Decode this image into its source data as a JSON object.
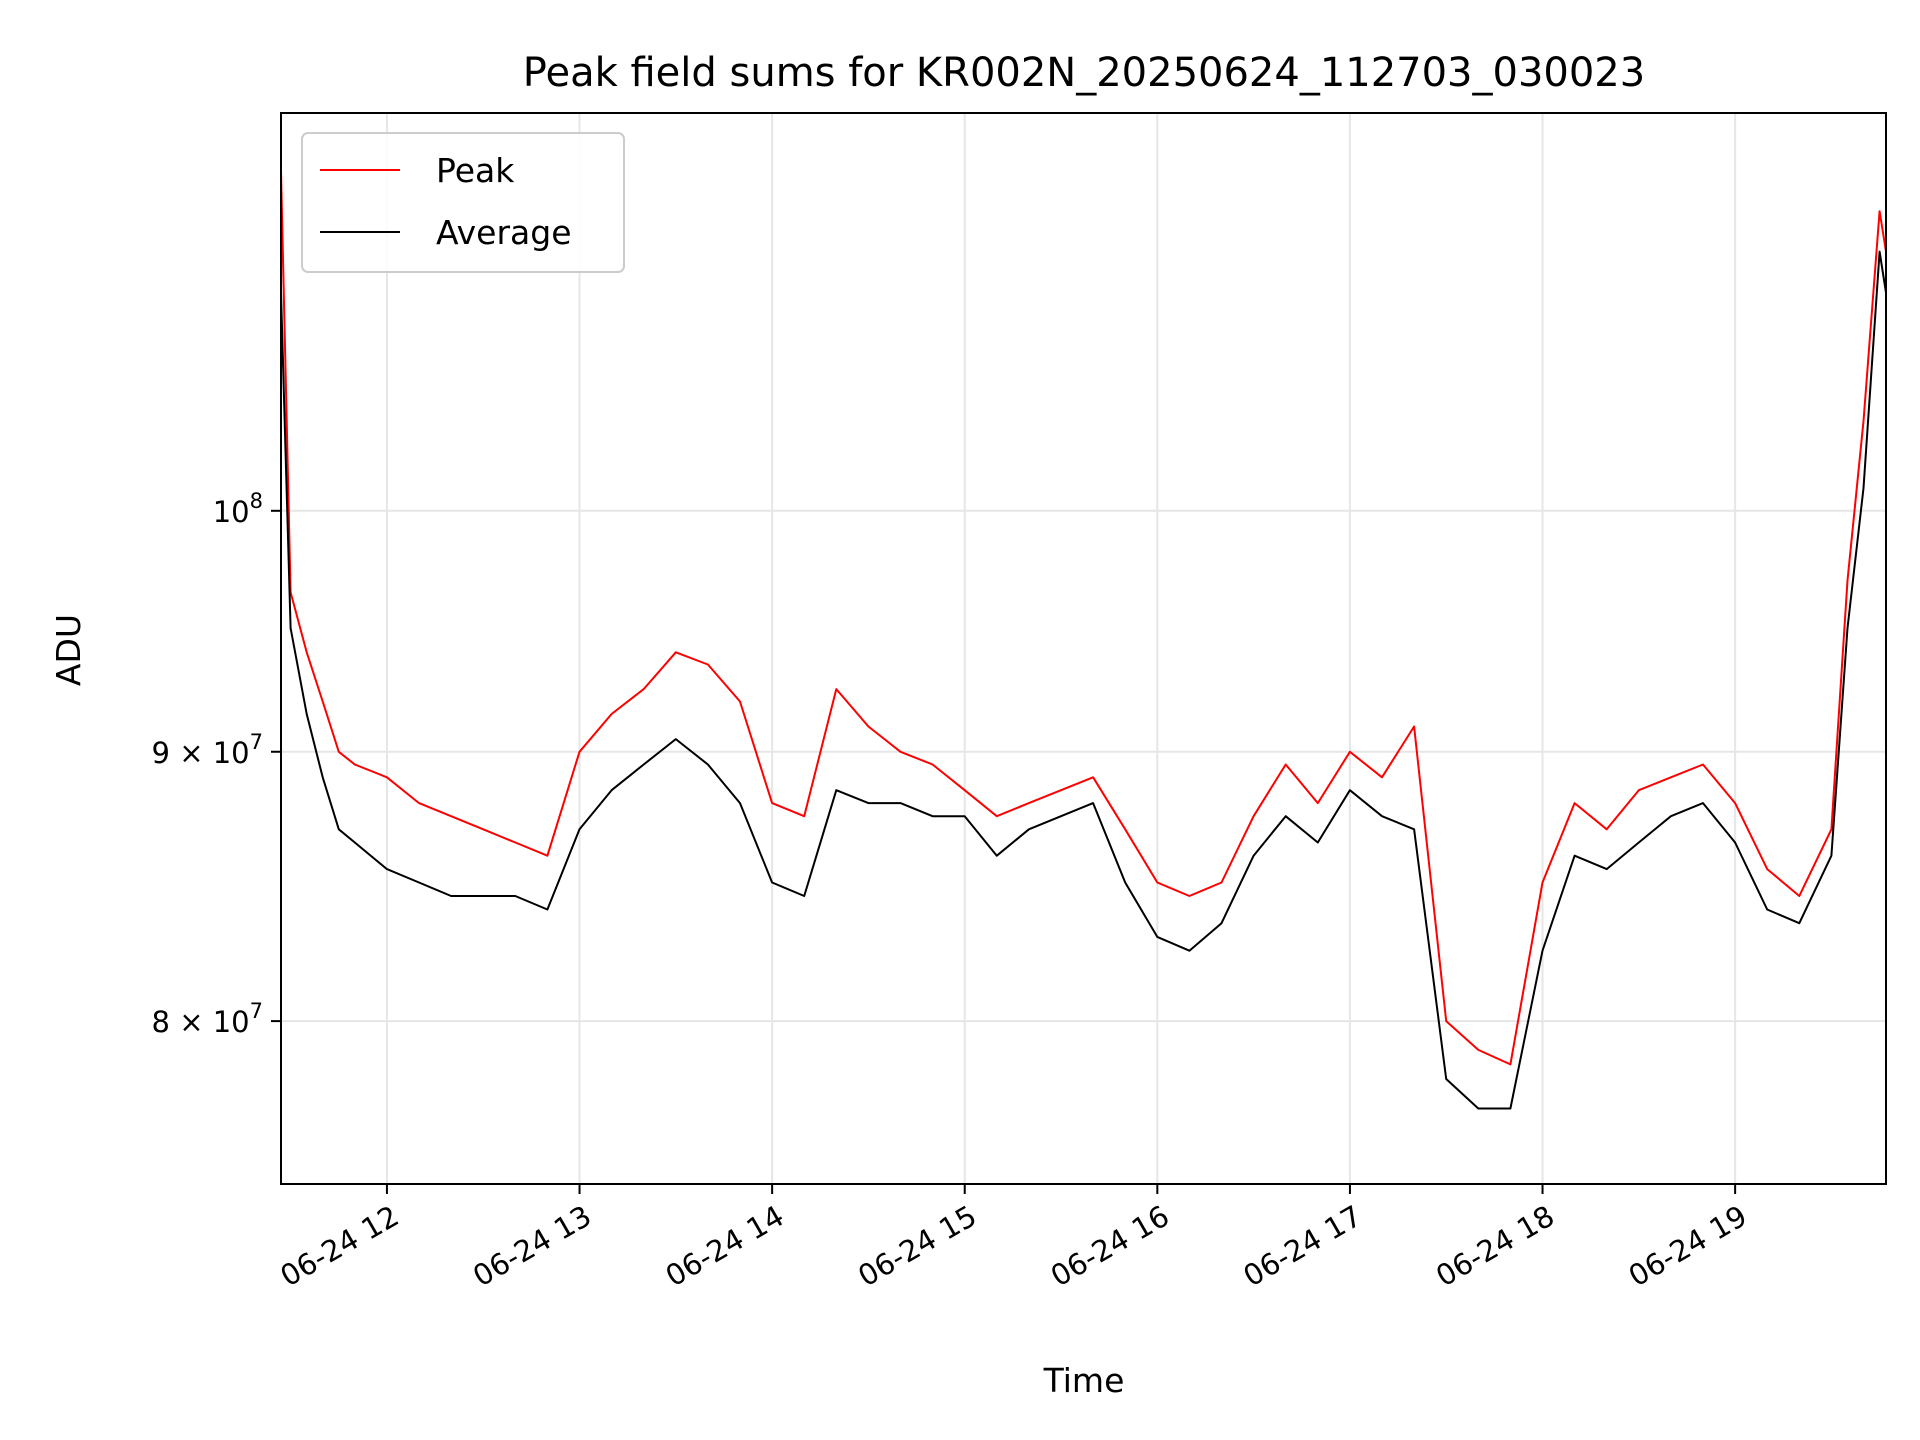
{
  "chart_data": {
    "type": "line",
    "title": "Peak field sums for KR002N_20250624_112703_030023",
    "xlabel": "Time",
    "ylabel": "ADU",
    "x_range": [
      "2025-06-24 11:27",
      "2025-06-24 19:47"
    ],
    "ylim": [
      74500000,
      119000000
    ],
    "y_scale": "log",
    "grid": true,
    "legend_position": "upper-left",
    "x_ticks": [
      "06-24 12",
      "06-24 13",
      "06-24 14",
      "06-24 15",
      "06-24 16",
      "06-24 17",
      "06-24 18",
      "06-24 19"
    ],
    "y_ticks": [
      {
        "value": 80000000,
        "mantissa": "8",
        "label": "8 × 10^7"
      },
      {
        "value": 90000000,
        "mantissa": "9",
        "label": "9 × 10^7"
      },
      {
        "value": 100000000,
        "mantissa": "",
        "label": "10^8"
      }
    ],
    "y_tick_base": "10",
    "y_tick_exponents": {
      "e7": "7",
      "e8": "8"
    },
    "y_tick_times": "×",
    "series": [
      {
        "name": "Peak",
        "color": "#ff0000",
        "x": [
          "11:27",
          "11:30",
          "11:35",
          "11:40",
          "11:45",
          "11:50",
          "12:00",
          "12:10",
          "12:20",
          "12:30",
          "12:40",
          "12:50",
          "13:00",
          "13:10",
          "13:20",
          "13:30",
          "13:40",
          "13:50",
          "14:00",
          "14:10",
          "14:20",
          "14:30",
          "14:40",
          "14:50",
          "15:00",
          "15:10",
          "15:20",
          "15:30",
          "15:40",
          "15:50",
          "16:00",
          "16:10",
          "16:20",
          "16:30",
          "16:40",
          "16:50",
          "17:00",
          "17:10",
          "17:20",
          "17:30",
          "17:40",
          "17:50",
          "18:00",
          "18:10",
          "18:20",
          "18:30",
          "18:40",
          "18:50",
          "19:00",
          "19:10",
          "19:20",
          "19:30",
          "19:35",
          "19:40",
          "19:45",
          "19:47"
        ],
        "values": [
          116000000,
          96500000,
          94000000,
          92000000,
          90000000,
          89500000,
          89000000,
          88000000,
          87500000,
          87000000,
          86500000,
          86000000,
          90000000,
          91500000,
          92500000,
          94000000,
          93500000,
          92000000,
          88000000,
          87500000,
          92500000,
          91000000,
          90000000,
          89500000,
          88500000,
          87500000,
          88000000,
          88500000,
          89000000,
          87000000,
          85000000,
          84500000,
          85000000,
          87500000,
          89500000,
          88000000,
          90000000,
          89000000,
          91000000,
          80000000,
          79000000,
          78500000,
          85000000,
          88000000,
          87000000,
          88500000,
          89000000,
          89500000,
          88000000,
          85500000,
          84500000,
          87000000,
          97000000,
          104000000,
          114000000,
          112000000
        ]
      },
      {
        "name": "Average",
        "color": "#000000",
        "x": [
          "11:27",
          "11:30",
          "11:35",
          "11:40",
          "11:45",
          "11:50",
          "12:00",
          "12:10",
          "12:20",
          "12:30",
          "12:40",
          "12:50",
          "13:00",
          "13:10",
          "13:20",
          "13:30",
          "13:40",
          "13:50",
          "14:00",
          "14:10",
          "14:20",
          "14:30",
          "14:40",
          "14:50",
          "15:00",
          "15:10",
          "15:20",
          "15:30",
          "15:40",
          "15:50",
          "16:00",
          "16:10",
          "16:20",
          "16:30",
          "16:40",
          "16:50",
          "17:00",
          "17:10",
          "17:20",
          "17:30",
          "17:40",
          "17:50",
          "18:00",
          "18:10",
          "18:20",
          "18:30",
          "18:40",
          "18:50",
          "19:00",
          "19:10",
          "19:20",
          "19:30",
          "19:35",
          "19:40",
          "19:45",
          "19:47"
        ],
        "values": [
          110000000,
          95000000,
          91500000,
          89000000,
          87000000,
          86500000,
          85500000,
          85000000,
          84500000,
          84500000,
          84500000,
          84000000,
          87000000,
          88500000,
          89500000,
          90500000,
          89500000,
          88000000,
          85000000,
          84500000,
          88500000,
          88000000,
          88000000,
          87500000,
          87500000,
          86000000,
          87000000,
          87500000,
          88000000,
          85000000,
          83000000,
          82500000,
          83500000,
          86000000,
          87500000,
          86500000,
          88500000,
          87500000,
          87000000,
          78000000,
          77000000,
          77000000,
          82500000,
          86000000,
          85500000,
          86500000,
          87500000,
          88000000,
          86500000,
          84000000,
          83500000,
          86000000,
          95000000,
          101000000,
          112000000,
          110000000
        ]
      }
    ]
  }
}
